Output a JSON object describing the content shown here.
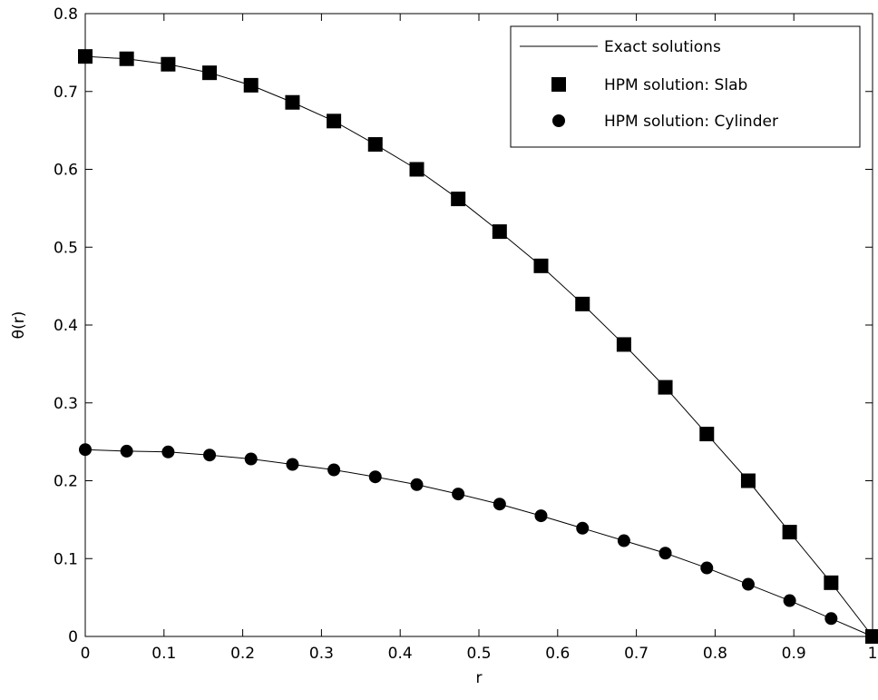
{
  "chart_data": {
    "type": "line",
    "xlabel": "r",
    "ylabel": "θ(r)",
    "xlim": [
      0,
      1
    ],
    "ylim": [
      0,
      0.8
    ],
    "xticks": [
      "0",
      "0.1",
      "0.2",
      "0.3",
      "0.4",
      "0.5",
      "0.6",
      "0.7",
      "0.8",
      "0.9",
      "1"
    ],
    "yticks": [
      "0",
      "0.1",
      "0.2",
      "0.3",
      "0.4",
      "0.5",
      "0.6",
      "0.7",
      "0.8"
    ],
    "grid": false,
    "legend_position": "top-right",
    "legend": [
      "Exact solutions",
      "HPM solution: Slab",
      "HPM solution: Cylinder"
    ],
    "series": [
      {
        "name": "HPM solution: Slab",
        "marker": "square",
        "line": "solid",
        "color": "#000000",
        "x": [
          0,
          0.0526,
          0.1053,
          0.1579,
          0.2105,
          0.2632,
          0.3158,
          0.3684,
          0.4211,
          0.4737,
          0.5263,
          0.5789,
          0.6316,
          0.6842,
          0.7368,
          0.7895,
          0.8421,
          0.8947,
          0.9474,
          1.0
        ],
        "y": [
          0.745,
          0.742,
          0.735,
          0.724,
          0.708,
          0.686,
          0.662,
          0.632,
          0.6,
          0.562,
          0.52,
          0.476,
          0.427,
          0.375,
          0.32,
          0.26,
          0.2,
          0.134,
          0.069,
          0.0
        ]
      },
      {
        "name": "HPM solution: Cylinder",
        "marker": "circle",
        "line": "solid",
        "color": "#000000",
        "x": [
          0,
          0.0526,
          0.1053,
          0.1579,
          0.2105,
          0.2632,
          0.3158,
          0.3684,
          0.4211,
          0.4737,
          0.5263,
          0.5789,
          0.6316,
          0.6842,
          0.7368,
          0.7895,
          0.8421,
          0.8947,
          0.9474,
          1.0
        ],
        "y": [
          0.24,
          0.238,
          0.237,
          0.233,
          0.228,
          0.221,
          0.214,
          0.205,
          0.195,
          0.183,
          0.17,
          0.155,
          0.139,
          0.123,
          0.107,
          0.088,
          0.067,
          0.046,
          0.023,
          0.0
        ]
      }
    ]
  }
}
